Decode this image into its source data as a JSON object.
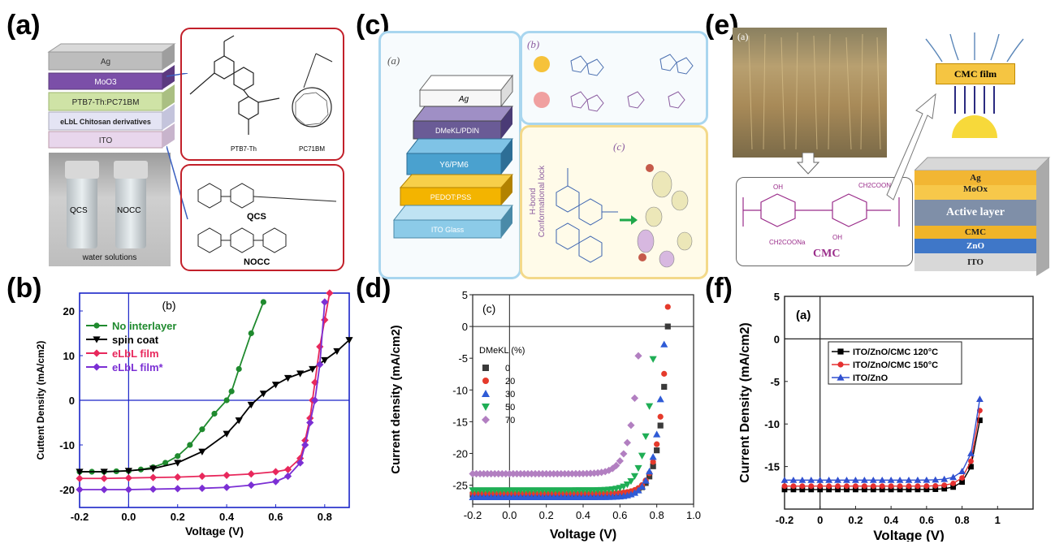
{
  "panels": {
    "a": {
      "label": "(a)",
      "layers": [
        "Ag",
        "MoO3",
        "PTB7-Th:PC71BM",
        "eLbL Chitosan derivatives",
        "ITO"
      ],
      "photo_labels": [
        "QCS",
        "NOCC"
      ],
      "photo_caption": "water solutions",
      "molecules": [
        "PTB7-Th",
        "PC71BM",
        "QCS",
        "NOCC"
      ]
    },
    "b": {
      "label": "(b)",
      "inner_label": "(b)"
    },
    "c": {
      "label": "(c)",
      "sub_a": "(a)",
      "sub_b": "(b)",
      "sub_c": "(c)",
      "layers": [
        "Ag",
        "DMeKL/PDIN",
        "Y6/PM6",
        "PEDOT:PSS",
        "ITO Glass"
      ],
      "lock_text": "H-bond Conformational lock"
    },
    "d": {
      "label": "(d)",
      "inner_label": "(c)"
    },
    "e": {
      "label": "(e)",
      "sub_a": "(a)",
      "cmc_film": "CMC film",
      "cmc": "CMC",
      "layers": [
        "Ag",
        "MoOx",
        "Active layer",
        "CMC",
        "ZnO",
        "ITO"
      ]
    },
    "f": {
      "label": "(f)",
      "inner_label": "(a)"
    }
  },
  "chart_data": [
    {
      "id": "b",
      "type": "line",
      "xlabel": "Voltage (V)",
      "ylabel": "Cuttent Density (mA/cm2)",
      "xlim": [
        -0.2,
        0.9
      ],
      "ylim": [
        -24,
        24
      ],
      "xticks": [
        "-0.2",
        "0.0",
        "0.2",
        "0.4",
        "0.6",
        "0.8"
      ],
      "yticks": [
        "20",
        "10",
        "0",
        "-10",
        "-20"
      ],
      "series": [
        {
          "name": "No interlayer",
          "color": "#1f8a2e",
          "marker": "circle",
          "x": [
            -0.2,
            -0.15,
            -0.1,
            -0.05,
            0,
            0.05,
            0.1,
            0.15,
            0.2,
            0.25,
            0.3,
            0.35,
            0.4,
            0.42,
            0.45,
            0.5,
            0.55
          ],
          "y": [
            -16,
            -16,
            -16,
            -15.9,
            -15.8,
            -15.5,
            -15,
            -14,
            -12.5,
            -10,
            -6.5,
            -3,
            0,
            2,
            7,
            15,
            22
          ]
        },
        {
          "name": "spin coat",
          "color": "#000000",
          "marker": "triangle-down",
          "x": [
            -0.2,
            -0.1,
            0,
            0.1,
            0.2,
            0.3,
            0.4,
            0.45,
            0.5,
            0.55,
            0.6,
            0.65,
            0.7,
            0.75,
            0.8,
            0.85,
            0.9
          ],
          "y": [
            -16,
            -16,
            -15.8,
            -15.3,
            -14,
            -11.5,
            -7.5,
            -4.5,
            -1,
            1.5,
            3.5,
            5,
            6,
            7,
            9,
            11,
            13.5
          ]
        },
        {
          "name": "eLbL film",
          "color": "#e8285c",
          "marker": "diamond",
          "x": [
            -0.2,
            -0.1,
            0,
            0.1,
            0.2,
            0.3,
            0.4,
            0.5,
            0.6,
            0.65,
            0.7,
            0.72,
            0.74,
            0.75,
            0.76,
            0.78,
            0.8,
            0.82
          ],
          "y": [
            -17.5,
            -17.5,
            -17.4,
            -17.3,
            -17.2,
            -17,
            -16.8,
            -16.5,
            -16,
            -15.5,
            -13,
            -9,
            -4,
            0,
            4,
            12,
            18,
            24
          ]
        },
        {
          "name": "eLbL film*",
          "color": "#7b2fd4",
          "marker": "diamond",
          "x": [
            -0.2,
            -0.1,
            0,
            0.1,
            0.2,
            0.3,
            0.4,
            0.5,
            0.6,
            0.65,
            0.7,
            0.72,
            0.74,
            0.76,
            0.78,
            0.8
          ],
          "y": [
            -20,
            -20,
            -20,
            -19.9,
            -19.8,
            -19.7,
            -19.5,
            -19,
            -18.2,
            -17,
            -14,
            -10,
            -5,
            0,
            8,
            22
          ]
        }
      ]
    },
    {
      "id": "d",
      "type": "scatter",
      "xlabel": "Voltage (V)",
      "ylabel": "Current density (mA/cm2)",
      "xlim": [
        -0.2,
        1.0
      ],
      "ylim": [
        -28,
        5
      ],
      "xticks": [
        "-0.2",
        "0.0",
        "0.2",
        "0.4",
        "0.6",
        "0.8",
        "1.0"
      ],
      "yticks": [
        "5",
        "0",
        "-5",
        "-10",
        "-15",
        "-20",
        "-25"
      ],
      "legend_title": "DMeKL (%)",
      "series": [
        {
          "name": "0",
          "color": "#3a3a3a",
          "marker": "square",
          "voc": 0.86,
          "jsc": -26.5
        },
        {
          "name": "20",
          "color": "#e53a2b",
          "marker": "circle",
          "voc": 0.855,
          "jsc": -26.3
        },
        {
          "name": "30",
          "color": "#2f5bd6",
          "marker": "triangle-up",
          "voc": 0.845,
          "jsc": -26.9
        },
        {
          "name": "50",
          "color": "#1fae55",
          "marker": "triangle-down",
          "voc": 0.79,
          "jsc": -25.8
        },
        {
          "name": "70",
          "color": "#b27fc1",
          "marker": "diamond",
          "voc": 0.71,
          "jsc": -23.2
        }
      ]
    },
    {
      "id": "f",
      "type": "scatter",
      "xlabel": "Voltage (V)",
      "ylabel": "Current Density (mA/cm2)",
      "xlim": [
        -0.2,
        1.2
      ],
      "ylim": [
        -20,
        5
      ],
      "xticks": [
        "-0.2",
        "0",
        "0.2",
        "0.4",
        "0.6",
        "0.8",
        "1"
      ],
      "yticks": [
        "5",
        "0",
        "-5",
        "-10",
        "-15"
      ],
      "series": [
        {
          "name": "ITO/ZnO/CMC 120°C",
          "color": "#000000",
          "marker": "square",
          "voc": 0.935,
          "jsc": -17.7
        },
        {
          "name": "ITO/ZnO/CMC 150°C",
          "color": "#e53030",
          "marker": "circle",
          "voc": 0.93,
          "jsc": -17.3
        },
        {
          "name": "ITO/ZnO",
          "color": "#3050d0",
          "marker": "triangle-up",
          "voc": 0.925,
          "jsc": -16.6
        }
      ]
    }
  ]
}
